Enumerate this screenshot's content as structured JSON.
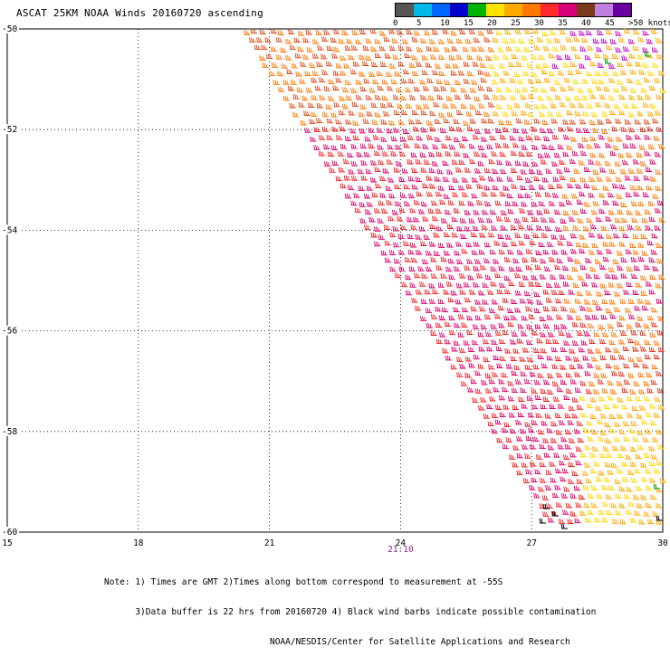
{
  "title": "ASCAT 25KM NOAA Winds 20160720 ascending",
  "legend": {
    "colors": [
      "#555555",
      "#00b7e8",
      "#0066ff",
      "#0000cc",
      "#00b400",
      "#ffe400",
      "#ffaa00",
      "#ff7800",
      "#ff2a2a",
      "#d8007a",
      "#7a3a1a",
      "#c080e0",
      "#6a00a0"
    ],
    "ticks": [
      "0",
      "5",
      "10",
      "15",
      "20",
      "25",
      "30",
      "35",
      "40",
      "45",
      ">50 knots"
    ]
  },
  "map": {
    "lon_ticks": [
      "15",
      "18",
      "21",
      "24",
      "27",
      "30"
    ],
    "lat_ticks": [
      "-50",
      "-52",
      "-54",
      "-56",
      "-58",
      "-60"
    ],
    "time_label": "21:10"
  },
  "notes": [
    "Note: 1) Times are GMT 2)Times along bottom correspond to measurement at -55S",
    "      3)Data buffer is 22 hrs from 20160720 4) Black wind barbs indicate possible contamination",
    "                                NOAA/NESDIS/Center for Satellite Applications and Research"
  ]
}
